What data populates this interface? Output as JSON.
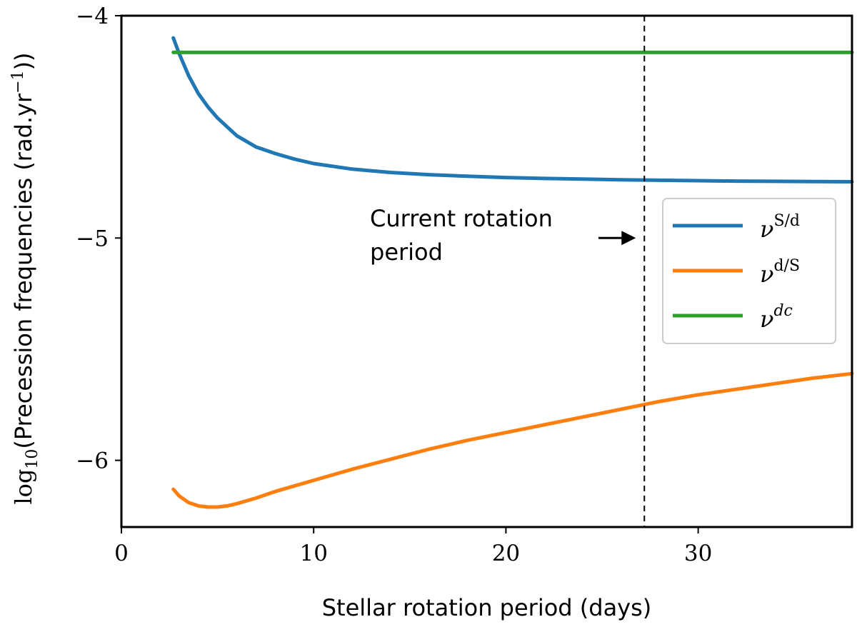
{
  "chart_data": {
    "type": "line",
    "title": "",
    "xlabel": "Stellar rotation period (days)",
    "ylabel_prefix": "log",
    "ylabel_sub": "10",
    "ylabel_main": "(Precession frequencies (rad.yr",
    "ylabel_sup": "−1",
    "ylabel_suffix": "))",
    "xlim": [
      0,
      38
    ],
    "ylim": [
      -6.3,
      -4.0
    ],
    "xticks": [
      0,
      10,
      20,
      30
    ],
    "xtick_labels": [
      "0",
      "10",
      "20",
      "30"
    ],
    "yticks": [
      -4,
      -5,
      -6
    ],
    "ytick_labels": [
      "−4",
      "−5",
      "−6"
    ],
    "grid": false,
    "legend_position": "right",
    "reference_line": {
      "x": 27.2,
      "style": "dashed",
      "color": "#000000"
    },
    "annotation": {
      "line1": "Current rotation",
      "line2": "period",
      "arrow_target_x": 27.2,
      "arrow_y": -5.0
    },
    "series": [
      {
        "name": "ν^{S/d}",
        "legend_base": "ν",
        "legend_sup": "S/d",
        "color": "#1f77b4",
        "x": [
          2.7,
          3.0,
          3.5,
          4.0,
          4.5,
          5.0,
          6.0,
          7.0,
          8.0,
          9.0,
          10.0,
          12.0,
          14.0,
          16.0,
          18.0,
          20.0,
          22.0,
          24.0,
          26.0,
          28.0,
          30.0,
          32.0,
          34.0,
          36.0,
          38.0
        ],
        "y": [
          -4.1,
          -4.17,
          -4.27,
          -4.35,
          -4.41,
          -4.46,
          -4.54,
          -4.59,
          -4.62,
          -4.645,
          -4.665,
          -4.69,
          -4.705,
          -4.715,
          -4.722,
          -4.728,
          -4.732,
          -4.735,
          -4.738,
          -4.74,
          -4.742,
          -4.744,
          -4.745,
          -4.746,
          -4.747
        ]
      },
      {
        "name": "ν^{d/S}",
        "legend_base": "ν",
        "legend_sup": "d/S",
        "color": "#ff7f0e",
        "x": [
          2.7,
          3.0,
          3.5,
          4.0,
          4.5,
          5.0,
          5.5,
          6.0,
          7.0,
          8.0,
          10.0,
          12.0,
          14.0,
          16.0,
          18.0,
          20.0,
          22.0,
          24.0,
          26.0,
          28.0,
          30.0,
          32.0,
          34.0,
          36.0,
          38.0
        ],
        "y": [
          -6.13,
          -6.16,
          -6.19,
          -6.205,
          -6.21,
          -6.21,
          -6.205,
          -6.195,
          -6.17,
          -6.14,
          -6.09,
          -6.04,
          -5.995,
          -5.95,
          -5.91,
          -5.875,
          -5.84,
          -5.805,
          -5.77,
          -5.735,
          -5.705,
          -5.68,
          -5.655,
          -5.63,
          -5.61
        ]
      },
      {
        "name": "ν^{dc}",
        "legend_base": "ν",
        "legend_sup": "dc",
        "color": "#2ca02c",
        "x": [
          2.7,
          38.0
        ],
        "y": [
          -4.165,
          -4.165
        ]
      }
    ]
  }
}
